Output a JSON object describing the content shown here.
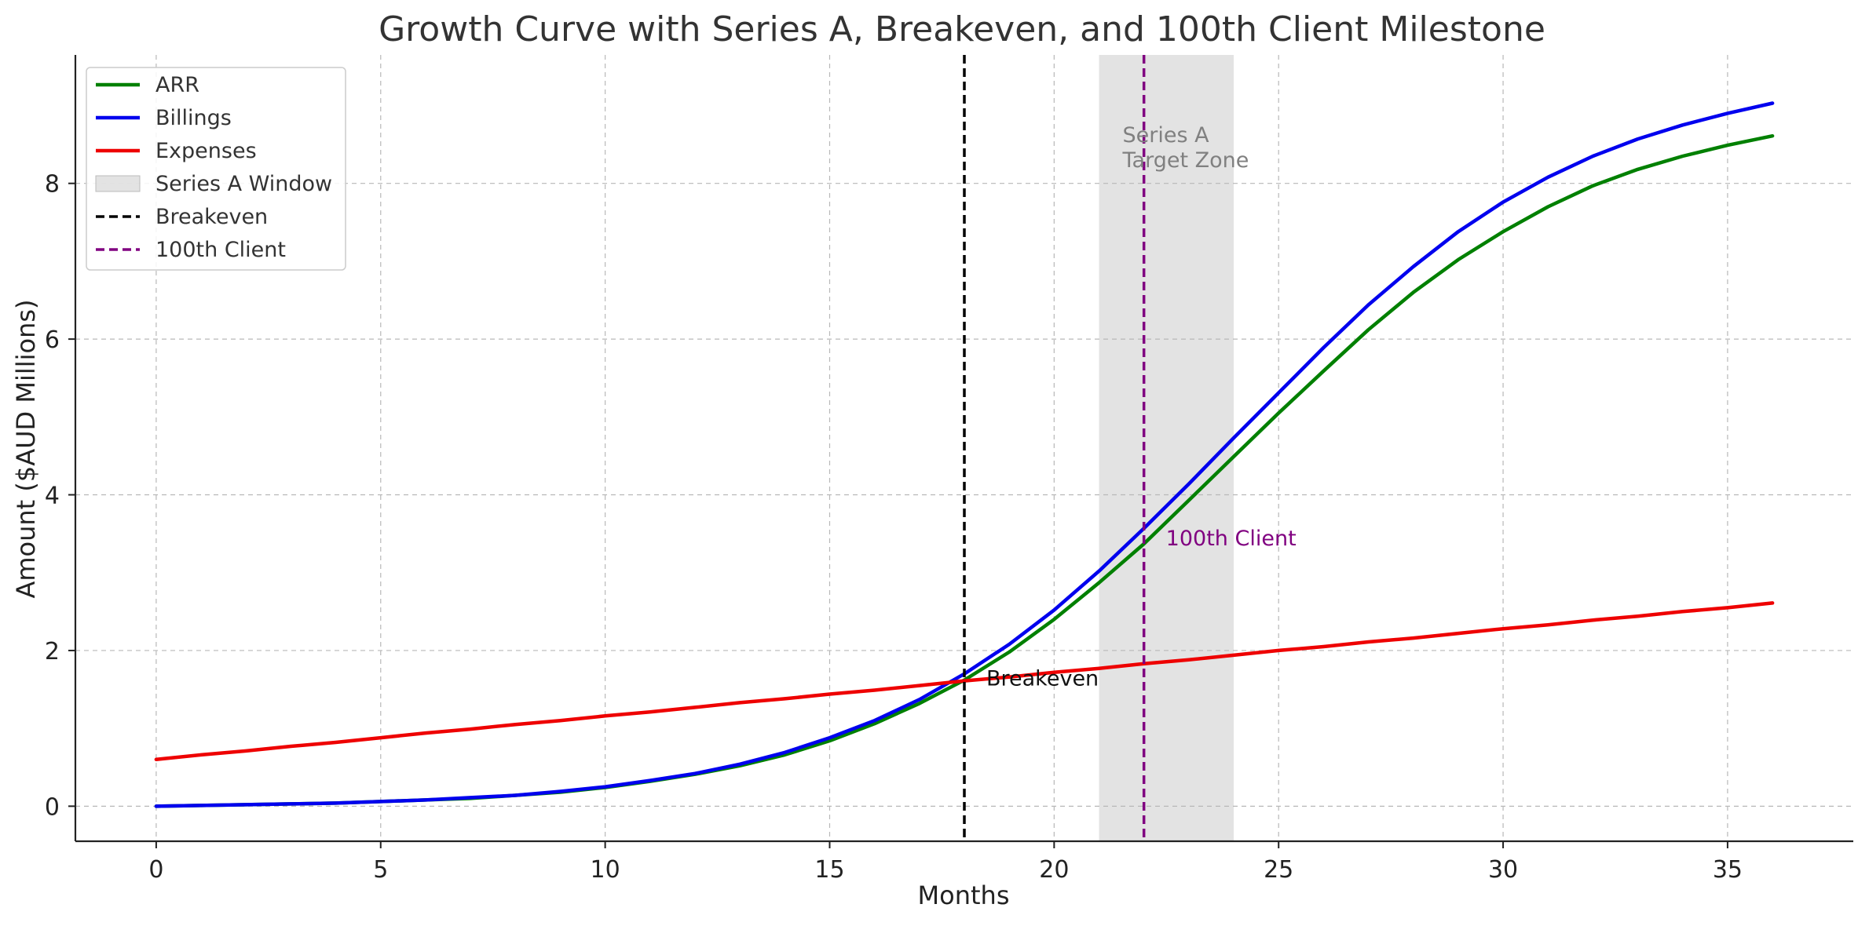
{
  "chart_data": {
    "type": "line",
    "title": "Growth Curve with Series A, Breakeven, and 100th Client Milestone",
    "xlabel": "Months",
    "ylabel": "Amount ($AUD Millions)",
    "xlim": [
      -1.8,
      37.8
    ],
    "ylim": [
      -0.45,
      9.65
    ],
    "xticks": [
      0,
      5,
      10,
      15,
      20,
      25,
      30,
      35
    ],
    "yticks": [
      0,
      2,
      4,
      6,
      8
    ],
    "grid": true,
    "legend_position": "top-left",
    "x": [
      0,
      1,
      2,
      3,
      4,
      5,
      6,
      7,
      8,
      9,
      10,
      11,
      12,
      13,
      14,
      15,
      16,
      17,
      18,
      19,
      20,
      21,
      22,
      23,
      24,
      25,
      26,
      27,
      28,
      29,
      30,
      31,
      32,
      33,
      34,
      35,
      36
    ],
    "series": [
      {
        "name": "ARR",
        "color": "#008000",
        "values": [
          0.0,
          0.01,
          0.02,
          0.03,
          0.04,
          0.06,
          0.08,
          0.1,
          0.14,
          0.18,
          0.24,
          0.32,
          0.41,
          0.52,
          0.66,
          0.84,
          1.06,
          1.32,
          1.62,
          1.98,
          2.4,
          2.87,
          3.37,
          3.93,
          4.49,
          5.05,
          5.59,
          6.12,
          6.6,
          7.02,
          7.38,
          7.7,
          7.97,
          8.18,
          8.35,
          8.49,
          8.61
        ]
      },
      {
        "name": "Billings",
        "color": "#0000ee",
        "values": [
          0.0,
          0.01,
          0.02,
          0.03,
          0.04,
          0.06,
          0.08,
          0.11,
          0.14,
          0.19,
          0.25,
          0.33,
          0.42,
          0.54,
          0.69,
          0.88,
          1.1,
          1.37,
          1.7,
          2.08,
          2.52,
          3.02,
          3.57,
          4.14,
          4.73,
          5.31,
          5.89,
          6.44,
          6.93,
          7.38,
          7.76,
          8.08,
          8.35,
          8.57,
          8.75,
          8.9,
          9.03
        ]
      },
      {
        "name": "Expenses",
        "color": "#ee0000",
        "values": [
          0.6,
          0.66,
          0.71,
          0.77,
          0.82,
          0.88,
          0.94,
          0.99,
          1.05,
          1.1,
          1.16,
          1.21,
          1.27,
          1.33,
          1.38,
          1.44,
          1.49,
          1.55,
          1.61,
          1.66,
          1.72,
          1.77,
          1.83,
          1.88,
          1.94,
          2.0,
          2.05,
          2.11,
          2.16,
          2.22,
          2.28,
          2.33,
          2.39,
          2.44,
          2.5,
          2.55,
          2.61
        ]
      }
    ],
    "shaded_region": {
      "name": "Series A Window",
      "x_start": 21,
      "x_end": 24,
      "color": "#d9d9d9",
      "label": [
        "Series A",
        "Target Zone"
      ]
    },
    "vlines": [
      {
        "name": "Breakeven",
        "x": 18,
        "color": "#000000",
        "label": "Breakeven",
        "label_y": 1.65
      },
      {
        "name": "100th Client",
        "x": 22,
        "color": "#800080",
        "label": "100th Client",
        "label_y": 3.45
      }
    ],
    "legend": [
      {
        "label": "ARR",
        "kind": "line",
        "color": "#008000"
      },
      {
        "label": "Billings",
        "kind": "line",
        "color": "#0000ee"
      },
      {
        "label": "Expenses",
        "kind": "line",
        "color": "#ee0000"
      },
      {
        "label": "Series A Window",
        "kind": "patch",
        "color": "#d9d9d9"
      },
      {
        "label": "Breakeven",
        "kind": "dashed",
        "color": "#000000"
      },
      {
        "label": "100th Client",
        "kind": "dashed",
        "color": "#800080"
      }
    ]
  }
}
